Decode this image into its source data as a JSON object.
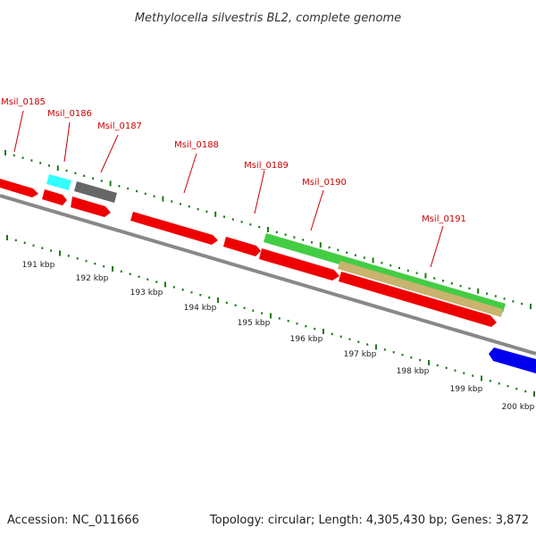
{
  "title": "Methylocella silvestris BL2, complete genome",
  "footer": {
    "accession": "Accession: NC_011666",
    "summary": "Topology: circular; Length: 4,305,430 bp; Genes: 3,872"
  },
  "colors": {
    "forward_cds": "#ff0000",
    "reverse_cds": "#0000ff",
    "tick": "#1a7a1a",
    "backbone": "#888888",
    "label": "#cc0000",
    "cyan_feature": "#33ffff",
    "gray_feature": "#666666",
    "green_feature": "#44cc44",
    "tan_feature": "#c8b46e"
  },
  "gene_labels": [
    "Msil_0185",
    "Msil_0186",
    "Msil_0187",
    "Msil_0188",
    "Msil_0189",
    "Msil_0190",
    "Msil_0191"
  ],
  "scale_labels": [
    "191 kbp",
    "192 kbp",
    "193 kbp",
    "194 kbp",
    "195 kbp",
    "196 kbp",
    "197 kbp",
    "198 kbp",
    "199 kbp",
    "200 kbp"
  ]
}
